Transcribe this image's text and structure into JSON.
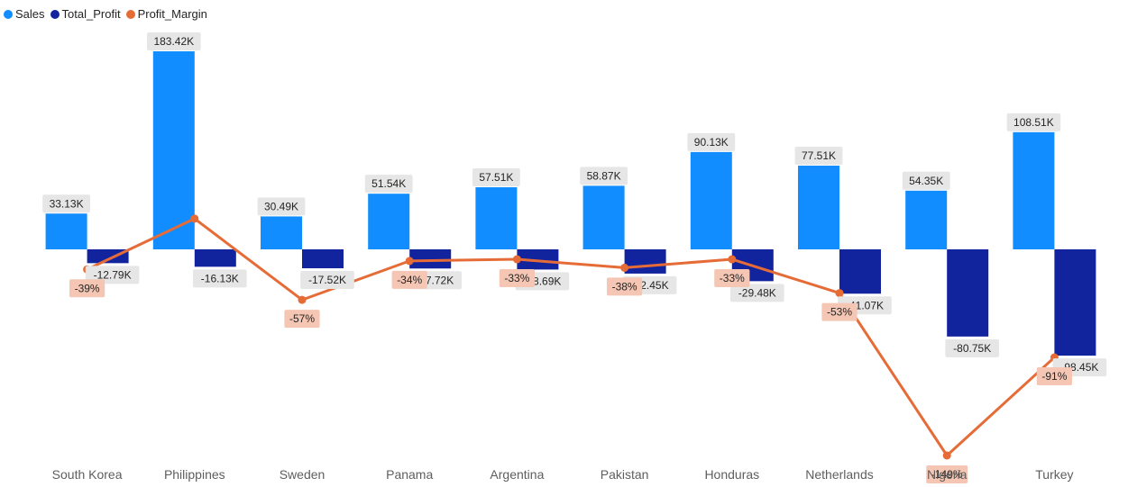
{
  "chart_data": {
    "type": "bar",
    "categories": [
      "South Korea",
      "Philippines",
      "Sweden",
      "Panama",
      "Argentina",
      "Pakistan",
      "Honduras",
      "Netherlands",
      "Nigeria",
      "Turkey"
    ],
    "series": [
      {
        "name": "Sales",
        "kind": "bar",
        "color": "#118DFF",
        "values": [
          33.13,
          183.42,
          30.49,
          51.54,
          57.51,
          58.87,
          90.13,
          77.51,
          54.35,
          108.51
        ],
        "labels": [
          "33.13K",
          "183.42K",
          "30.49K",
          "51.54K",
          "57.51K",
          "58.87K",
          "90.13K",
          "77.51K",
          "54.35K",
          "108.51K"
        ]
      },
      {
        "name": "Total_Profit",
        "kind": "bar",
        "color": "#12239E",
        "values": [
          -12.79,
          -16.13,
          -17.52,
          -17.72,
          -18.69,
          -22.45,
          -29.48,
          -41.07,
          -80.75,
          -98.45
        ],
        "labels": [
          "-12.79K",
          "-16.13K",
          "-17.52K",
          "-17.72K",
          "-18.69K",
          "-22.45K",
          "-29.48K",
          "-41.07K",
          "-80.75K",
          "-98.45K"
        ]
      },
      {
        "name": "Profit_Margin",
        "kind": "line",
        "color": "#E66C37",
        "values": [
          -39,
          -9,
          -57,
          -34,
          -33,
          -38,
          -33,
          -53,
          -149,
          -91
        ],
        "labels": [
          "-39%",
          "",
          "-57%",
          "-34%",
          "-33%",
          "-38%",
          "-33%",
          "-53%",
          "-149%",
          "-91%"
        ]
      }
    ],
    "bar_unit": "K",
    "line_unit": "%",
    "legend_position": "top-left",
    "grid": false
  }
}
